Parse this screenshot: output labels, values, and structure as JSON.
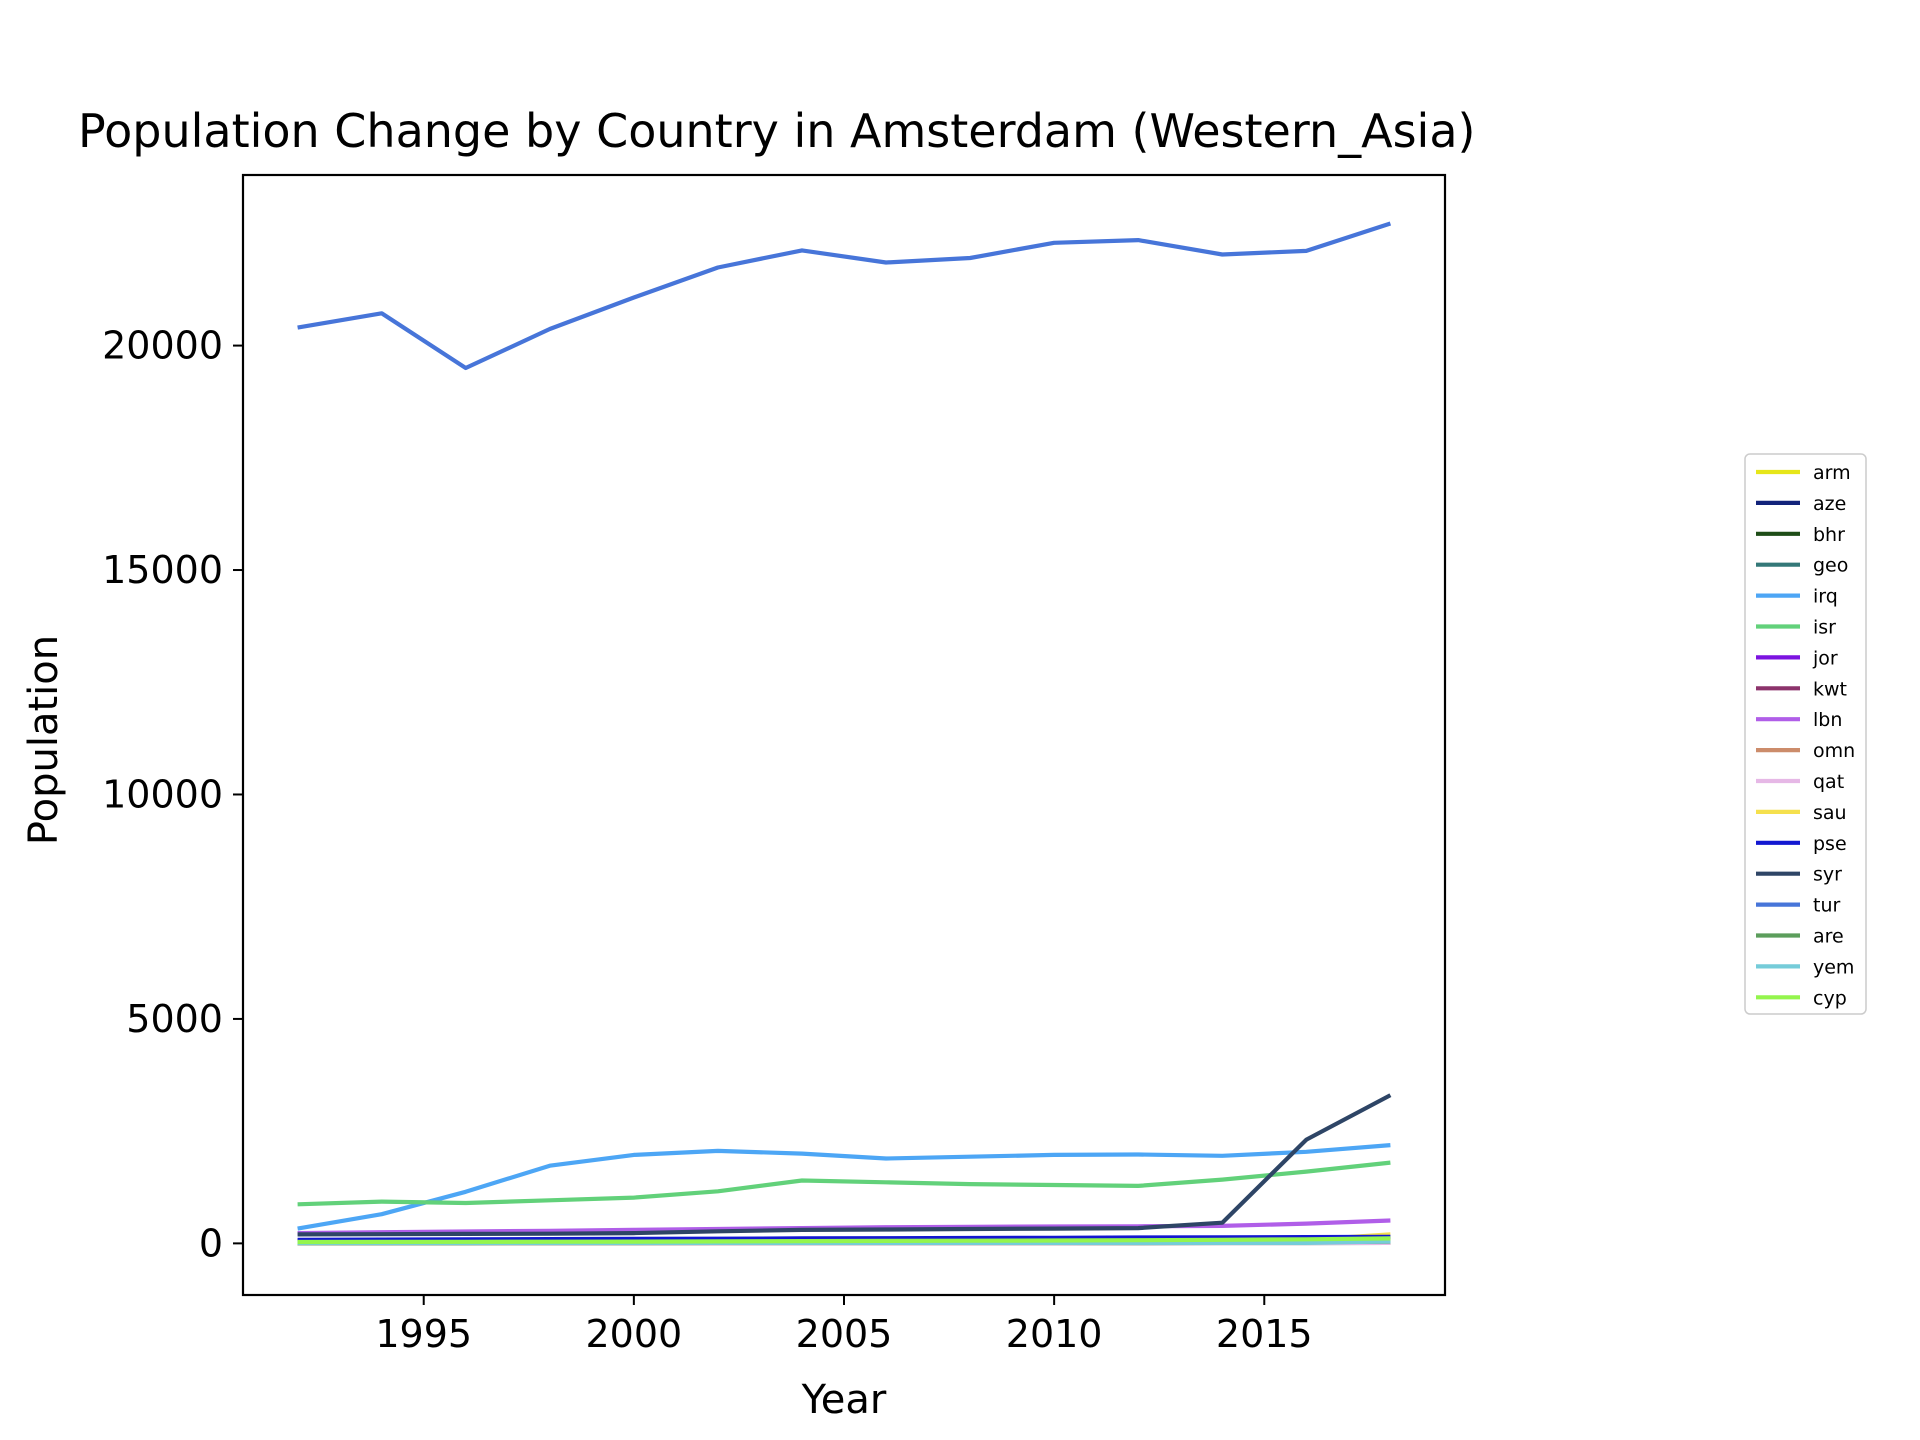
{
  "chart_data": {
    "type": "line",
    "title": "Population Change by Country in Amsterdam (Western_Asia)",
    "xlabel": "Year",
    "ylabel": "Population",
    "xlim": [
      1990.7,
      2019.3
    ],
    "ylim": [
      -1150,
      23800
    ],
    "xticks": [
      1995,
      2000,
      2005,
      2010,
      2015
    ],
    "yticks": [
      0,
      5000,
      10000,
      15000,
      20000
    ],
    "grid": false,
    "legend_position": "right",
    "x": [
      1992,
      1994,
      1996,
      1998,
      2000,
      2002,
      2004,
      2006,
      2008,
      2010,
      2012,
      2014,
      2016,
      2018
    ],
    "series": [
      {
        "name": "arm",
        "color": "#e6e619",
        "values": [
          5,
          8,
          10,
          12,
          15,
          18,
          22,
          28,
          35,
          45,
          55,
          65,
          80,
          120
        ]
      },
      {
        "name": "aze",
        "color": "#12237a",
        "values": [
          5,
          6,
          8,
          10,
          12,
          15,
          18,
          22,
          26,
          30,
          35,
          40,
          45,
          50
        ]
      },
      {
        "name": "bhr",
        "color": "#1e4d17",
        "values": [
          2,
          2,
          3,
          3,
          4,
          4,
          5,
          5,
          6,
          6,
          7,
          8,
          9,
          10
        ]
      },
      {
        "name": "geo",
        "color": "#347878",
        "values": [
          3,
          4,
          5,
          6,
          8,
          10,
          15,
          20,
          30,
          40,
          50,
          60,
          70,
          85
        ]
      },
      {
        "name": "irq",
        "color": "#4da6f5",
        "values": [
          330,
          650,
          1150,
          1730,
          1970,
          2060,
          2000,
          1890,
          1930,
          1970,
          1980,
          1950,
          2040,
          2190
        ]
      },
      {
        "name": "isr",
        "color": "#62d17a",
        "values": [
          870,
          930,
          900,
          960,
          1020,
          1160,
          1400,
          1360,
          1320,
          1300,
          1280,
          1420,
          1600,
          1800
        ]
      },
      {
        "name": "jor",
        "color": "#7c14e0",
        "values": [
          40,
          45,
          50,
          55,
          60,
          65,
          70,
          75,
          80,
          85,
          90,
          95,
          100,
          105
        ]
      },
      {
        "name": "kwt",
        "color": "#8c336b",
        "values": [
          60,
          62,
          65,
          68,
          70,
          72,
          75,
          78,
          80,
          82,
          85,
          88,
          90,
          92
        ]
      },
      {
        "name": "lbn",
        "color": "#b05ee8",
        "values": [
          230,
          250,
          265,
          280,
          300,
          320,
          340,
          360,
          370,
          375,
          380,
          390,
          440,
          510
        ]
      },
      {
        "name": "omn",
        "color": "#cc8c6b",
        "values": [
          5,
          5,
          6,
          6,
          7,
          7,
          8,
          8,
          9,
          9,
          10,
          10,
          11,
          12
        ]
      },
      {
        "name": "qat",
        "color": "#e6b8e6",
        "values": [
          3,
          3,
          4,
          4,
          5,
          5,
          6,
          6,
          7,
          7,
          8,
          8,
          9,
          10
        ]
      },
      {
        "name": "sau",
        "color": "#f5e04d",
        "values": [
          20,
          22,
          25,
          28,
          30,
          35,
          40,
          45,
          50,
          55,
          60,
          70,
          80,
          200
        ]
      },
      {
        "name": "pse",
        "color": "#1217d1",
        "values": [
          80,
          85,
          90,
          95,
          100,
          105,
          110,
          115,
          120,
          125,
          130,
          135,
          140,
          145
        ]
      },
      {
        "name": "syr",
        "color": "#2e4566",
        "values": [
          200,
          205,
          210,
          215,
          230,
          270,
          300,
          310,
          320,
          330,
          340,
          460,
          2310,
          3300
        ]
      },
      {
        "name": "tur",
        "color": "#4775d9",
        "values": [
          20400,
          20720,
          19500,
          20370,
          21070,
          21740,
          22120,
          21850,
          21950,
          22290,
          22350,
          22030,
          22110,
          22720
        ]
      },
      {
        "name": "are",
        "color": "#5c9e5c",
        "values": [
          5,
          6,
          7,
          8,
          9,
          10,
          12,
          14,
          16,
          18,
          20,
          25,
          30,
          40
        ]
      },
      {
        "name": "yem",
        "color": "#75ccd9",
        "values": [
          10,
          10,
          10,
          10,
          10,
          10,
          10,
          10,
          10,
          10,
          10,
          10,
          10,
          45
        ]
      },
      {
        "name": "cyp",
        "color": "#94f54d",
        "values": [
          30,
          32,
          35,
          38,
          40,
          45,
          50,
          55,
          60,
          65,
          70,
          80,
          90,
          110
        ]
      }
    ]
  }
}
